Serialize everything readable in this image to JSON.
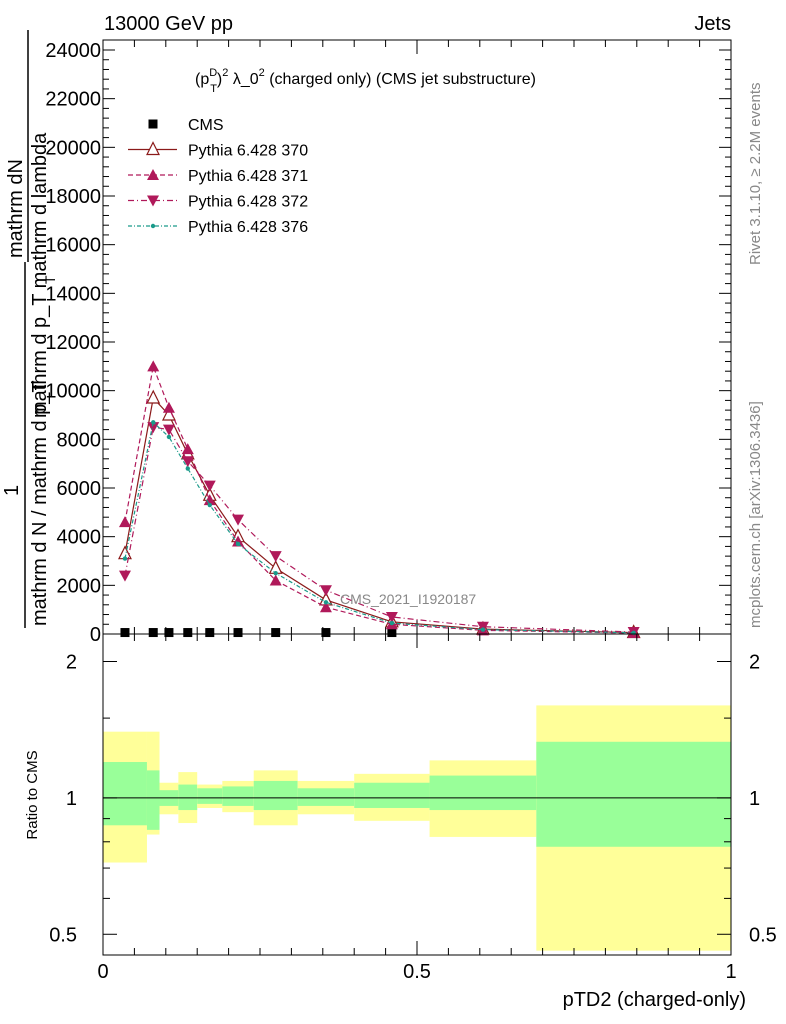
{
  "header": {
    "left_title": "13000 GeV pp",
    "right_title": "Jets"
  },
  "side_labels": {
    "rivet": "Rivet 3.1.10, ≥ 2.2M events",
    "mcplots": "mcplots.cern.ch [arXiv:1306.3436]"
  },
  "chart_data": [
    {
      "type": "line",
      "panel": "main",
      "title": "(p_T^D)^2 λ_0^2 (charged only) (CMS jet substructure)",
      "title_parts": {
        "p": "(p",
        "sub": "T",
        "sup": "D",
        "rest1": ")",
        "sup2": "2",
        "rest2": " λ_0",
        "sup3": "2",
        "rest3": " (charged only) (CMS jet substructure)"
      },
      "ylabel_lines": [
        "mathrm dN",
        "mathrm d p_T mathrm d lambda",
        "1",
        "mathrm d N / mathrm d p_T"
      ],
      "ylabel_sub": "T",
      "analysis_watermark": "CMS_2021_I1920187",
      "xlim": [
        0,
        1
      ],
      "ylim": [
        0,
        24000
      ],
      "yticks": [
        0,
        2000,
        4000,
        6000,
        8000,
        10000,
        12000,
        14000,
        16000,
        18000,
        20000,
        22000,
        24000
      ],
      "ytick_labels": [
        "0",
        "2000",
        "4000",
        "6000",
        "8000",
        "10000",
        "12000",
        "14000",
        "16000",
        "18000",
        "20000",
        "22000",
        "24000"
      ],
      "x": [
        0.035,
        0.08,
        0.105,
        0.135,
        0.17,
        0.215,
        0.275,
        0.355,
        0.46,
        0.605,
        0.845
      ],
      "series": [
        {
          "name": "CMS",
          "color": "#000000",
          "marker": "square",
          "values": [
            60,
            60,
            60,
            60,
            60,
            60,
            60,
            60,
            60,
            0,
            0
          ]
        },
        {
          "name": "Pythia 6.428 370",
          "color": "#8b1a1a",
          "marker": "triangle-open",
          "dash": "",
          "values": [
            3300,
            9700,
            9000,
            7400,
            5700,
            4000,
            2700,
            1400,
            500,
            200,
            60
          ]
        },
        {
          "name": "Pythia 6.428 371",
          "color": "#b0195a",
          "marker": "triangle-up",
          "dash": "5,3",
          "values": [
            4600,
            11000,
            9300,
            7600,
            5500,
            3800,
            2200,
            1100,
            400,
            150,
            40
          ]
        },
        {
          "name": "Pythia 6.428 372",
          "color": "#b0195a",
          "marker": "triangle-down",
          "dash": "6,3,1,3",
          "values": [
            2400,
            8500,
            8400,
            7100,
            6100,
            4700,
            3200,
            1800,
            700,
            300,
            80
          ]
        },
        {
          "name": "Pythia 6.428 376",
          "color": "#1a9a8a",
          "marker": "dot",
          "dash": "4,2,1,2",
          "values": [
            3100,
            8700,
            8100,
            6800,
            5300,
            3700,
            2500,
            1300,
            450,
            180,
            50
          ]
        }
      ],
      "legend_position": "top-left"
    },
    {
      "type": "area",
      "panel": "ratio",
      "ylabel": "Ratio to CMS",
      "xlabel": "pTD2 (charged-only)",
      "xlim": [
        0,
        1
      ],
      "ylim": [
        0.45,
        2.3
      ],
      "log_y": true,
      "yticks": [
        0.5,
        1,
        2
      ],
      "ytick_labels": [
        "0.5",
        "1",
        "2"
      ],
      "xticks": [
        0,
        0.5,
        1
      ],
      "xtick_labels": [
        "0",
        "0.5",
        "1"
      ],
      "bins": [
        [
          0.0,
          0.07
        ],
        [
          0.07,
          0.09
        ],
        [
          0.09,
          0.12
        ],
        [
          0.12,
          0.15
        ],
        [
          0.15,
          0.19
        ],
        [
          0.19,
          0.24
        ],
        [
          0.24,
          0.31
        ],
        [
          0.31,
          0.4
        ],
        [
          0.4,
          0.52
        ],
        [
          0.52,
          0.69
        ],
        [
          0.69,
          1.0
        ]
      ],
      "outer_band": [
        [
          0.72,
          1.4
        ],
        [
          0.83,
          1.4
        ],
        [
          0.92,
          1.08
        ],
        [
          0.88,
          1.14
        ],
        [
          0.95,
          1.07
        ],
        [
          0.93,
          1.09
        ],
        [
          0.87,
          1.15
        ],
        [
          0.92,
          1.09
        ],
        [
          0.89,
          1.13
        ],
        [
          0.82,
          1.21
        ],
        [
          0.46,
          1.6
        ]
      ],
      "inner_band": [
        [
          0.87,
          1.2
        ],
        [
          0.85,
          1.15
        ],
        [
          0.96,
          1.04
        ],
        [
          0.94,
          1.07
        ],
        [
          0.97,
          1.05
        ],
        [
          0.96,
          1.06
        ],
        [
          0.94,
          1.09
        ],
        [
          0.96,
          1.05
        ],
        [
          0.95,
          1.08
        ],
        [
          0.94,
          1.12
        ],
        [
          0.78,
          1.33
        ]
      ],
      "outer_color": "#ffff99",
      "inner_color": "#99ff99",
      "reference_line": 1
    }
  ]
}
